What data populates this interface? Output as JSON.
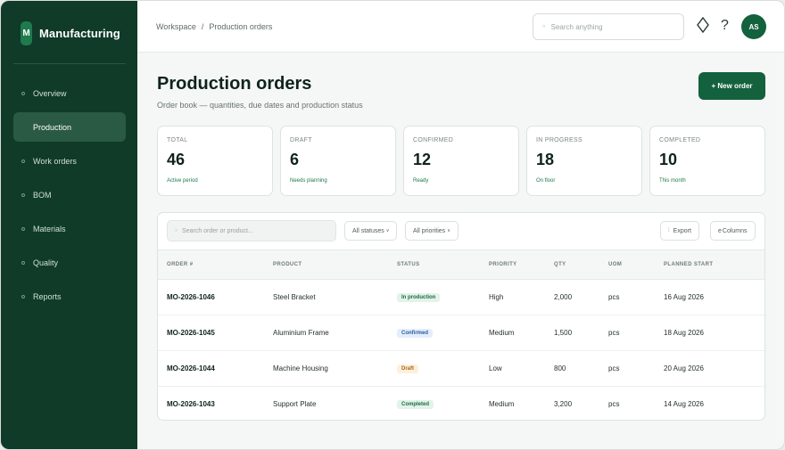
{
  "sidebar": {
    "logo_letter": "M",
    "brand": "Manufacturing",
    "items": [
      {
        "label": "Overview",
        "active": false
      },
      {
        "label": "Production",
        "active": true
      },
      {
        "label": "Work orders",
        "active": false
      },
      {
        "label": "BOM",
        "active": false
      },
      {
        "label": "Materials",
        "active": false
      },
      {
        "label": "Quality",
        "active": false
      },
      {
        "label": "Reports",
        "active": false
      }
    ]
  },
  "header": {
    "breadcrumb": [
      "Workspace",
      "/",
      "Production orders"
    ],
    "search_placeholder": "Search anything",
    "icons": [
      "diamond-icon",
      "help-icon"
    ],
    "help_glyph": "?",
    "avatar_initials": "AS"
  },
  "page": {
    "title": "Production orders",
    "subtitle": "Order book — quantities, due dates and production status",
    "new_order_label": "+ New order"
  },
  "stats": [
    {
      "label": "TOTAL",
      "value": "46",
      "note": "Active period"
    },
    {
      "label": "DRAFT",
      "value": "6",
      "note": "Needs planning"
    },
    {
      "label": "CONFIRMED",
      "value": "12",
      "note": "Ready"
    },
    {
      "label": "IN PROGRESS",
      "value": "18",
      "note": "On floor"
    },
    {
      "label": "COMPLETED",
      "value": "10",
      "note": "This month"
    }
  ],
  "table": {
    "search_placeholder": "Search order or product...",
    "filters": [
      "All statuses",
      "All priorities"
    ],
    "export_label": "Export",
    "columns_label": "Columns",
    "headers": [
      "ORDER #",
      "PRODUCT",
      "STATUS",
      "PRIORITY",
      "QTY",
      "UOM",
      "PLANNED START"
    ],
    "rows": [
      {
        "order": "MO-2026-1046",
        "product": "Steel Bracket",
        "status": "In production",
        "priority": "High",
        "qty": "2,000",
        "uom": "pcs",
        "start": "16 Aug 2026"
      },
      {
        "order": "MO-2026-1045",
        "product": "Aluminium Frame",
        "status": "Confirmed",
        "priority": "Medium",
        "qty": "1,500",
        "uom": "pcs",
        "start": "18 Aug 2026"
      },
      {
        "order": "MO-2026-1044",
        "product": "Machine Housing",
        "status": "Draft",
        "priority": "Low",
        "qty": "800",
        "uom": "pcs",
        "start": "20 Aug 2026"
      },
      {
        "order": "MO-2026-1043",
        "product": "Support Plate",
        "status": "Completed",
        "priority": "Medium",
        "qty": "3,200",
        "uom": "pcs",
        "start": "14 Aug 2026"
      }
    ]
  },
  "colors": {
    "sidebar_bg": "#0f3b28",
    "accent": "#13613d",
    "status_in_production": "#e3f3e9",
    "status_confirmed": "#e4eefb",
    "status_draft": "#fdf0de",
    "status_completed": "#e3f3e9"
  }
}
